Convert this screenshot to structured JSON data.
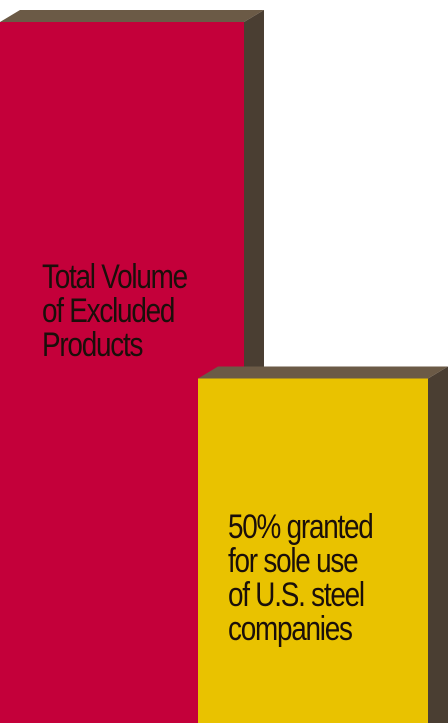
{
  "chart_data": {
    "type": "bar",
    "categories": [
      "Total Volume of Excluded Products",
      "50% granted for sole use of U.S. steel companies"
    ],
    "values": [
      100,
      50
    ],
    "label_lines": [
      [
        "Total Volume",
        "of Excluded",
        "Products"
      ],
      [
        "50% granted",
        "for sole use",
        "of U.S. steel",
        "companies"
      ]
    ],
    "colors": [
      "#c4003a",
      "#e9c200"
    ],
    "title": "",
    "xlabel": "",
    "ylabel": "",
    "ylim": [
      0,
      100
    ],
    "grid": false
  }
}
